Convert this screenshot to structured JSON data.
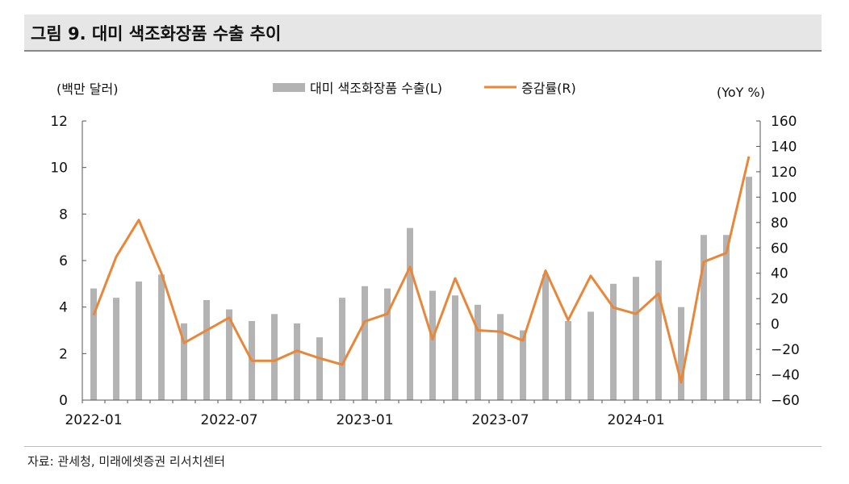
{
  "title": "그림 9. 대미 색조화장품 수출 추이",
  "source": "자료: 관세청, 미래에셋증권 리서치센터",
  "chart_data": {
    "type": "bar",
    "left_axis_label": "(백만 달러)",
    "right_axis_label": "(YoY %)",
    "legend_position": "top",
    "grid": false,
    "x_tick_labels": [
      "2022-01",
      "2022-07",
      "2023-01",
      "2023-07",
      "2024-01"
    ],
    "y_left": {
      "min": 0,
      "max": 12,
      "ticks": [
        0,
        2,
        4,
        6,
        8,
        10,
        12
      ]
    },
    "y_right": {
      "min": -60,
      "max": 160,
      "ticks": [
        -60,
        -40,
        -20,
        0,
        20,
        40,
        60,
        80,
        100,
        120,
        140,
        160
      ]
    },
    "categories": [
      "2022-01",
      "2022-02",
      "2022-03",
      "2022-04",
      "2022-05",
      "2022-06",
      "2022-07",
      "2022-08",
      "2022-09",
      "2022-10",
      "2022-11",
      "2022-12",
      "2023-01",
      "2023-02",
      "2023-03",
      "2023-04",
      "2023-05",
      "2023-06",
      "2023-07",
      "2023-08",
      "2023-09",
      "2023-10",
      "2023-11",
      "2023-12",
      "2024-01",
      "2024-02",
      "2024-03",
      "2024-04",
      "2024-05",
      "2024-06"
    ],
    "series": [
      {
        "name": "대미 색조화장품 수출(L)",
        "type": "bar",
        "axis": "left",
        "color": "#b3b3b3",
        "values": [
          4.8,
          4.4,
          5.1,
          5.4,
          3.3,
          4.3,
          3.9,
          3.4,
          3.7,
          3.3,
          2.7,
          4.4,
          4.9,
          4.8,
          7.4,
          4.7,
          4.5,
          4.1,
          3.7,
          3.0,
          5.4,
          3.4,
          3.8,
          5.0,
          5.3,
          6.0,
          4.0,
          7.1,
          7.1,
          9.6
        ]
      },
      {
        "name": "증감률(R)",
        "type": "line",
        "axis": "right",
        "color": "#e8873a",
        "values": [
          7,
          53,
          82,
          40,
          -15,
          -5,
          5,
          -29,
          -29,
          -21,
          -27,
          -32,
          2,
          8,
          45,
          -12,
          36,
          -5,
          -6,
          -13,
          42,
          3,
          38,
          13,
          8,
          24,
          -46,
          49,
          56,
          132
        ]
      }
    ]
  }
}
